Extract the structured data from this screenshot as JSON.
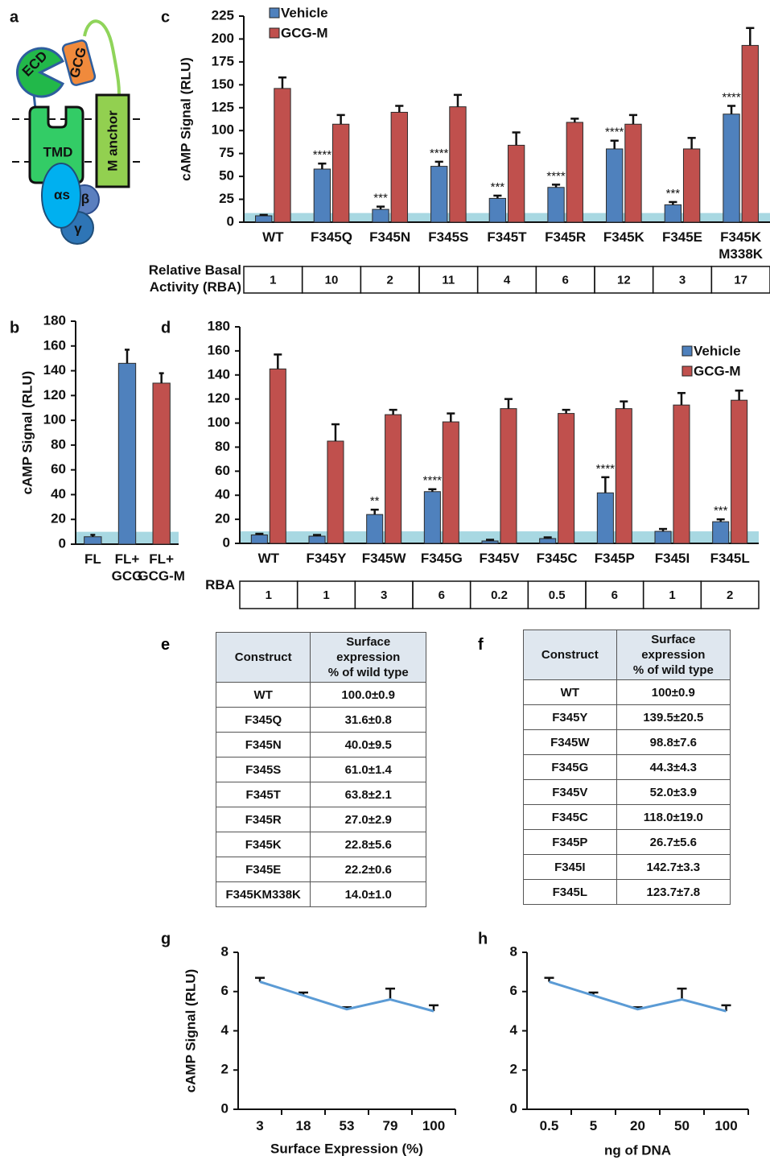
{
  "diagram": {
    "label": "a",
    "ecd": "ECD",
    "gcg": "GCG",
    "tmd": "TMD",
    "anchor": "M anchor",
    "alpha": "αs",
    "beta": "β",
    "gamma": "γ"
  },
  "chart_data": [
    {
      "panel": "c",
      "type": "bar",
      "y_label": "cAMP Signal (RLU)",
      "categories": [
        "WT",
        "F345Q",
        "F345N",
        "F345S",
        "F345T",
        "F345R",
        "F345K",
        "F345E",
        "F345K M338K"
      ],
      "series": [
        {
          "name": "Vehicle",
          "color": "#4f81bd",
          "values": [
            7,
            58,
            14,
            61,
            26,
            38,
            80,
            19,
            118
          ],
          "errors": [
            1,
            6,
            3,
            5,
            3,
            3,
            9,
            3,
            9
          ]
        },
        {
          "name": "GCG-M",
          "color": "#c0504d",
          "values": [
            146,
            107,
            120,
            126,
            84,
            109,
            107,
            80,
            193
          ],
          "errors": [
            12,
            10,
            7,
            13,
            14,
            4,
            10,
            12,
            19
          ]
        }
      ],
      "annotations": [
        null,
        "****",
        "***",
        "****",
        "***",
        "****",
        "****",
        "***",
        "****"
      ],
      "ylim": [
        0,
        225
      ],
      "yticks": [
        0,
        25,
        50,
        75,
        100,
        125,
        150,
        175,
        200,
        225
      ],
      "legend": "upper left",
      "basal_band": [
        0,
        10
      ],
      "band_color": "#a8d8e2",
      "rba": {
        "label": "Relative Basal\nActivity (RBA)",
        "values": [
          1,
          10,
          2,
          11,
          4,
          6,
          12,
          3,
          17
        ]
      }
    },
    {
      "panel": "b",
      "type": "bar",
      "y_label": "cAMP Signal (RLU)",
      "categories": [
        "FL",
        "FL+ GCG",
        "FL+ GCG-M"
      ],
      "values": [
        6,
        146,
        130
      ],
      "errors": [
        1.5,
        11,
        8
      ],
      "colors": [
        "#4f81bd",
        "#4f81bd",
        "#c0504d"
      ],
      "ylim": [
        0,
        180
      ],
      "yticks": [
        0,
        20,
        40,
        60,
        80,
        100,
        120,
        140,
        160,
        180
      ],
      "basal_band": [
        0,
        10
      ],
      "band_color": "#a8d8e2"
    },
    {
      "panel": "d",
      "type": "bar",
      "categories": [
        "WT",
        "F345Y",
        "F345W",
        "F345G",
        "F345V",
        "F345C",
        "F345P",
        "F345I",
        "F345L"
      ],
      "series": [
        {
          "name": "Vehicle",
          "color": "#4f81bd",
          "values": [
            7,
            6,
            24,
            43,
            2,
            4,
            42,
            10,
            18
          ],
          "errors": [
            1,
            1,
            4,
            2,
            1,
            1,
            13,
            2,
            2
          ]
        },
        {
          "name": "GCG-M",
          "color": "#c0504d",
          "values": [
            145,
            85,
            107,
            101,
            112,
            108,
            112,
            115,
            119
          ],
          "errors": [
            12,
            14,
            4,
            7,
            8,
            3,
            6,
            10,
            8
          ]
        }
      ],
      "annotations": [
        null,
        null,
        "**",
        "****",
        null,
        null,
        "****",
        null,
        "***"
      ],
      "ylim": [
        0,
        180
      ],
      "yticks": [
        0,
        20,
        40,
        60,
        80,
        100,
        120,
        140,
        160,
        180
      ],
      "legend": "upper right",
      "basal_band": [
        0,
        10
      ],
      "band_color": "#a8d8e2",
      "rba": {
        "label": "RBA",
        "values": [
          1,
          1,
          3,
          6,
          0.2,
          0.5,
          6,
          1,
          2
        ]
      }
    },
    {
      "panel": "g",
      "type": "line",
      "y_label": "cAMP Signal (RLU)",
      "x_label": "Surface Expression (%)",
      "categories": [
        "3",
        "18",
        "53",
        "79",
        "100"
      ],
      "values": [
        6.5,
        5.8,
        5.1,
        5.6,
        5.0
      ],
      "errors": [
        0.2,
        0.15,
        0.1,
        0.55,
        0.3
      ],
      "color": "#5b9bd5",
      "ylim": [
        0,
        8
      ],
      "yticks": [
        0,
        2,
        4,
        6,
        8
      ]
    },
    {
      "panel": "h",
      "type": "line",
      "x_label": "ng of DNA",
      "categories": [
        "0.5",
        "5",
        "20",
        "50",
        "100"
      ],
      "values": [
        6.5,
        5.8,
        5.1,
        5.6,
        5.0
      ],
      "errors": [
        0.2,
        0.15,
        0.1,
        0.55,
        0.3
      ],
      "color": "#5b9bd5",
      "ylim": [
        0,
        8
      ],
      "yticks": [
        0,
        2,
        4,
        6,
        8
      ]
    }
  ],
  "tables": [
    {
      "label": "e",
      "header": [
        "Construct",
        "Surface\nexpression\n% of wild type"
      ],
      "rows": [
        [
          "WT",
          "100.0±0.9"
        ],
        [
          "F345Q",
          "31.6±0.8"
        ],
        [
          "F345N",
          "40.0±9.5"
        ],
        [
          "F345S",
          "61.0±1.4"
        ],
        [
          "F345T",
          "63.8±2.1"
        ],
        [
          "F345R",
          "27.0±2.9"
        ],
        [
          "F345K",
          "22.8±5.6"
        ],
        [
          "F345E",
          "22.2±0.6"
        ],
        [
          "F345KM338K",
          "14.0±1.0"
        ]
      ]
    },
    {
      "label": "f",
      "header": [
        "Construct",
        "Surface\nexpression\n% of wild type"
      ],
      "rows": [
        [
          "WT",
          "100±0.9"
        ],
        [
          "F345Y",
          "139.5±20.5"
        ],
        [
          "F345W",
          "98.8±7.6"
        ],
        [
          "F345G",
          "44.3±4.3"
        ],
        [
          "F345V",
          "52.0±3.9"
        ],
        [
          "F345C",
          "118.0±19.0"
        ],
        [
          "F345P",
          "26.7±5.6"
        ],
        [
          "F345I",
          "142.7±3.3"
        ],
        [
          "F345L",
          "123.7±7.8"
        ]
      ]
    }
  ]
}
